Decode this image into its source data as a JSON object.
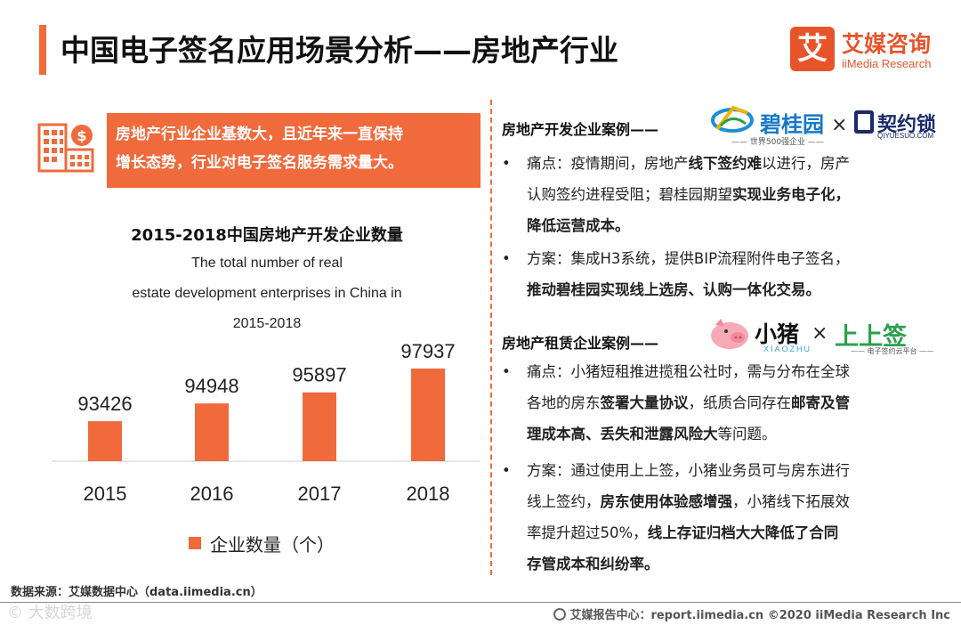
{
  "title": "中国电子签名应用场景分析——房地产行业",
  "brand": {
    "mark": "艾",
    "name_cn": "艾媒咨询",
    "name_en": "iiMedia Research",
    "color": "#e8542a"
  },
  "accent_color": "#f06a3c",
  "highlight": {
    "line1": "房地产行业企业基数大，且近年来一直保持",
    "line2": "增长态势，行业对电子签名服务需求量大。"
  },
  "chart_text": {
    "title": "2015-2018中国房地产开发企业数量",
    "subtitle_lines": [
      "The total number of real",
      "estate development enterprises in China in",
      "2015-2018"
    ]
  },
  "chart_data": {
    "type": "bar",
    "categories": [
      "2015",
      "2016",
      "2017",
      "2018"
    ],
    "series": [
      {
        "name": "企业数量（个）",
        "values": [
          93426,
          94948,
          95897,
          97937
        ]
      }
    ],
    "title": "2015-2018中国房地产开发企业数量",
    "xlabel": "",
    "ylabel": "",
    "ylim": [
      90000,
      99000
    ],
    "data_labels": true,
    "grid": false,
    "legend": "bottom",
    "bar_color": "#f06a3c"
  },
  "case1": {
    "heading": "房地产开发企业案例——",
    "logo_a": {
      "name": "碧桂园",
      "sub": "—— 世界500强企业 ——",
      "icon": "country-garden-logo-icon"
    },
    "times": "×",
    "logo_b": {
      "name": "契约锁",
      "sub": "QIYUESUO.COM",
      "icon": "qiyuesuo-logo-icon"
    },
    "bullets": [
      {
        "dot": "•",
        "lines": [
          [
            {
              "t": "痛点：疫情期间，房地产"
            },
            {
              "t": "线下签约难",
              "b": true
            },
            {
              "t": "以进行，房产"
            }
          ],
          [
            {
              "t": "认购签约进程受阻；碧桂园期望"
            },
            {
              "t": "实现业务电子化，",
              "b": true
            }
          ],
          [
            {
              "t": "降低运营成本。",
              "b": true
            }
          ]
        ]
      },
      {
        "dot": "•",
        "lines": [
          [
            {
              "t": "方案：集成H3系统，提供BIP流程附件电子签名，"
            }
          ],
          [
            {
              "t": "推动碧桂园实现线上选房、认购一体化交易。",
              "b": true
            }
          ]
        ]
      }
    ]
  },
  "case2": {
    "heading": "房地产租赁企业案例——",
    "logo_a": {
      "name": "小猪",
      "sub": "XIAOZHU",
      "icon": "xiaozhu-pig-icon"
    },
    "times": "×",
    "logo_b": {
      "name": "上上签",
      "sub": "—— 电子签约云平台 ——",
      "icon": "bestsign-logo-icon"
    },
    "bullets": [
      {
        "dot": "•",
        "lines": [
          [
            {
              "t": "痛点：小猪短租推进揽租公社时，需与分布在全球"
            }
          ],
          [
            {
              "t": "各地的房东"
            },
            {
              "t": "签署大量协议",
              "b": true
            },
            {
              "t": "，纸质合同存在"
            },
            {
              "t": "邮寄及管",
              "b": true
            }
          ],
          [
            {
              "t": "理成本高、丢失和泄露风险大",
              "b": true
            },
            {
              "t": "等问题。"
            }
          ]
        ]
      },
      {
        "dot": "•",
        "lines": [
          [
            {
              "t": "方案：通过使用上上签，小猪业务员可与房东进行"
            }
          ],
          [
            {
              "t": "线上签约，"
            },
            {
              "t": "房东使用体验感增强",
              "b": true
            },
            {
              "t": "，小猪线下拓展效"
            }
          ],
          [
            {
              "t": "率提升超过50%，"
            },
            {
              "t": "线上存证归档大大降低了合同",
              "b": true
            }
          ],
          [
            {
              "t": "存管成本和纠纷率。",
              "b": true
            }
          ]
        ]
      }
    ]
  },
  "source": "数据来源：艾媒数据中心（data.iimedia.cn）",
  "footer": "艾媒报告中心：report.iimedia.cn  ©2020 iiMedia Research  Inc",
  "watermark": "© 大数跨境",
  "icons": [
    "building-dollar-icon",
    "globe-icon"
  ]
}
